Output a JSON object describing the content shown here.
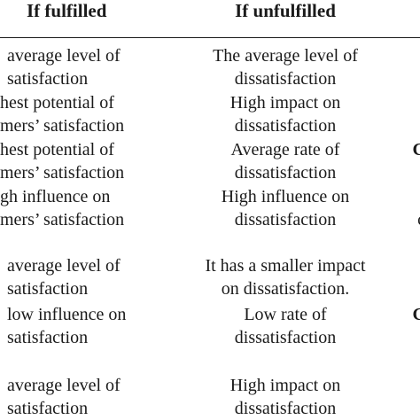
{
  "header": {
    "col1": "If fulfilled",
    "col2": "If unfulfilled"
  },
  "rows": [
    {
      "fulfilled": [
        "average level of",
        "satisfaction"
      ],
      "unfulfilled": [
        "The average level of",
        "dissatisfaction"
      ],
      "extra": ""
    },
    {
      "fulfilled": [
        "hest potential of",
        "mers’ satisfaction"
      ],
      "unfulfilled": [
        "High impact on",
        "dissatisfaction"
      ],
      "extra": ""
    },
    {
      "fulfilled": [
        "hest potential of",
        "mers’ satisfaction"
      ],
      "unfulfilled": [
        "Average rate of",
        "dissatisfaction"
      ],
      "extra": "C"
    },
    {
      "fulfilled": [
        "gh influence on",
        "mers’ satisfaction"
      ],
      "unfulfilled": [
        "High influence on",
        "dissatisfaction"
      ],
      "extra": "c"
    },
    {
      "fulfilled": [
        "average level of",
        "satisfaction"
      ],
      "unfulfilled": [
        "It has a smaller impact",
        "on dissatisfaction."
      ],
      "extra": ""
    },
    {
      "fulfilled": [
        "low influence on",
        "satisfaction"
      ],
      "unfulfilled": [
        "Low rate of",
        "dissatisfaction"
      ],
      "extra": "C"
    },
    {
      "fulfilled": [
        "average level of",
        "satisfaction"
      ],
      "unfulfilled": [
        "High impact on",
        "dissatisfaction"
      ],
      "extra": ""
    }
  ]
}
